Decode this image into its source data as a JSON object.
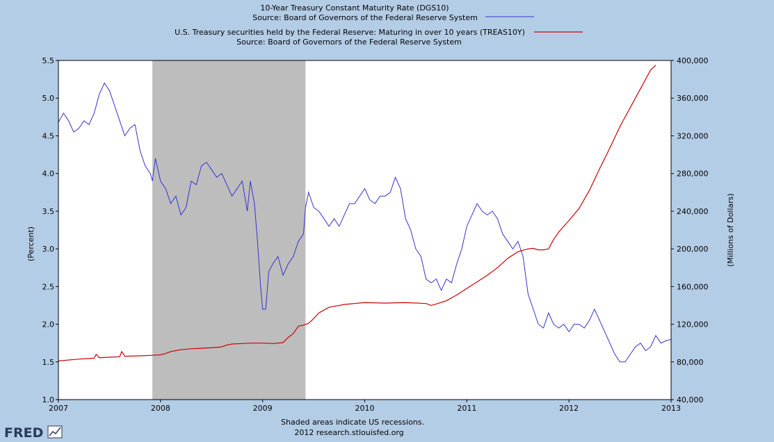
{
  "chart_data": {
    "type": "line",
    "title_lines": [
      "10-Year Treasury Constant Maturity Rate (DGS10)",
      "Source: Board of Governors of the Federal Reserve System",
      "U.S. Treasury securities held by the Federal Reserve: Maturing in over 10 years (TREAS10Y)",
      "Source: Board of Governors of the Federal Reserve System"
    ],
    "ylabel_left": "(Percent)",
    "ylabel_right": "(Millions of Dollars)",
    "xlim": [
      2007,
      2013
    ],
    "ylim_left": [
      1.0,
      5.5
    ],
    "ylim_right": [
      40000,
      400000
    ],
    "x_ticks": [
      "2007",
      "2008",
      "2009",
      "2010",
      "2011",
      "2012",
      "2013"
    ],
    "y_ticks_left": [
      "1.0",
      "1.5",
      "2.0",
      "2.5",
      "3.0",
      "3.5",
      "4.0",
      "4.5",
      "5.0",
      "5.5"
    ],
    "y_ticks_right": [
      "40,000",
      "80,000",
      "120,000",
      "160,000",
      "200,000",
      "240,000",
      "280,000",
      "320,000",
      "360,000",
      "400,000"
    ],
    "recession": {
      "start": 2007.92,
      "end": 2009.42
    },
    "series": [
      {
        "name": "DGS10",
        "color": "#3333cc",
        "axis": "left",
        "x": [
          2007.0,
          2007.05,
          2007.1,
          2007.15,
          2007.2,
          2007.25,
          2007.3,
          2007.35,
          2007.4,
          2007.45,
          2007.5,
          2007.55,
          2007.6,
          2007.65,
          2007.7,
          2007.75,
          2007.8,
          2007.85,
          2007.9,
          2007.92,
          2007.95,
          2008.0,
          2008.05,
          2008.1,
          2008.15,
          2008.2,
          2008.25,
          2008.3,
          2008.35,
          2008.4,
          2008.45,
          2008.5,
          2008.55,
          2008.6,
          2008.65,
          2008.7,
          2008.75,
          2008.8,
          2008.85,
          2008.88,
          2008.92,
          2008.95,
          2008.98,
          2009.0,
          2009.03,
          2009.06,
          2009.1,
          2009.15,
          2009.2,
          2009.25,
          2009.3,
          2009.35,
          2009.4,
          2009.42,
          2009.45,
          2009.5,
          2009.55,
          2009.6,
          2009.65,
          2009.7,
          2009.75,
          2009.8,
          2009.85,
          2009.9,
          2009.95,
          2010.0,
          2010.05,
          2010.1,
          2010.15,
          2010.2,
          2010.25,
          2010.3,
          2010.35,
          2010.4,
          2010.45,
          2010.5,
          2010.55,
          2010.6,
          2010.65,
          2010.7,
          2010.75,
          2010.8,
          2010.85,
          2010.9,
          2010.95,
          2011.0,
          2011.05,
          2011.1,
          2011.15,
          2011.2,
          2011.25,
          2011.3,
          2011.35,
          2011.4,
          2011.45,
          2011.5,
          2011.55,
          2011.6,
          2011.65,
          2011.7,
          2011.75,
          2011.8,
          2011.85,
          2011.9,
          2011.95,
          2012.0,
          2012.05,
          2012.1,
          2012.15,
          2012.2,
          2012.25,
          2012.3,
          2012.35,
          2012.4,
          2012.45,
          2012.5,
          2012.55,
          2012.6,
          2012.65,
          2012.7,
          2012.75,
          2012.8,
          2012.85,
          2012.9,
          2012.95,
          2013.0
        ],
        "values": [
          4.68,
          4.8,
          4.7,
          4.55,
          4.6,
          4.7,
          4.65,
          4.8,
          5.05,
          5.2,
          5.1,
          4.9,
          4.7,
          4.5,
          4.6,
          4.65,
          4.3,
          4.1,
          4.0,
          3.9,
          4.2,
          3.9,
          3.8,
          3.6,
          3.7,
          3.45,
          3.55,
          3.9,
          3.85,
          4.1,
          4.15,
          4.05,
          3.95,
          4.0,
          3.85,
          3.7,
          3.8,
          3.9,
          3.5,
          3.9,
          3.6,
          3.1,
          2.5,
          2.2,
          2.2,
          2.7,
          2.8,
          2.9,
          2.65,
          2.8,
          2.9,
          3.1,
          3.2,
          3.55,
          3.75,
          3.55,
          3.5,
          3.4,
          3.3,
          3.4,
          3.3,
          3.45,
          3.6,
          3.6,
          3.7,
          3.8,
          3.65,
          3.6,
          3.7,
          3.7,
          3.75,
          3.95,
          3.8,
          3.4,
          3.25,
          3.0,
          2.9,
          2.6,
          2.55,
          2.6,
          2.45,
          2.6,
          2.55,
          2.8,
          3.0,
          3.3,
          3.45,
          3.6,
          3.5,
          3.45,
          3.5,
          3.4,
          3.2,
          3.1,
          3.0,
          3.1,
          2.9,
          2.4,
          2.2,
          2.0,
          1.95,
          2.15,
          2.0,
          1.95,
          2.0,
          1.9,
          2.0,
          2.0,
          1.95,
          2.05,
          2.2,
          2.05,
          1.9,
          1.75,
          1.6,
          1.5,
          1.5,
          1.6,
          1.7,
          1.75,
          1.65,
          1.7,
          1.85,
          1.75,
          1.78,
          1.8
        ]
      },
      {
        "name": "TREAS10Y",
        "color": "#cc0000",
        "axis": "right",
        "x": [
          2007.0,
          2007.2,
          2007.35,
          2007.37,
          2007.4,
          2007.5,
          2007.6,
          2007.62,
          2007.65,
          2007.8,
          2007.9,
          2008.0,
          2008.05,
          2008.1,
          2008.2,
          2008.3,
          2008.4,
          2008.5,
          2008.6,
          2008.65,
          2008.7,
          2008.8,
          2008.9,
          2009.0,
          2009.1,
          2009.2,
          2009.25,
          2009.3,
          2009.35,
          2009.4,
          2009.45,
          2009.5,
          2009.55,
          2009.6,
          2009.65,
          2009.7,
          2009.8,
          2009.9,
          2010.0,
          2010.2,
          2010.4,
          2010.6,
          2010.65,
          2010.7,
          2010.8,
          2010.9,
          2011.0,
          2011.1,
          2011.2,
          2011.3,
          2011.4,
          2011.5,
          2011.6,
          2011.65,
          2011.7,
          2011.75,
          2011.8,
          2011.85,
          2011.9,
          2012.0,
          2012.1,
          2012.2,
          2012.3,
          2012.4,
          2012.5,
          2012.6,
          2012.7,
          2012.8,
          2012.85
        ],
        "values": [
          81000,
          83000,
          84000,
          88000,
          84500,
          85000,
          85500,
          91000,
          86000,
          86500,
          87000,
          87500,
          89000,
          91000,
          93000,
          94000,
          94500,
          95000,
          96000,
          98000,
          99000,
          99500,
          100000,
          100000,
          99500,
          100500,
          106000,
          110000,
          118000,
          119000,
          121000,
          126000,
          132000,
          135000,
          138000,
          139000,
          141000,
          142000,
          143000,
          142500,
          143000,
          142000,
          140000,
          141500,
          145000,
          151000,
          158000,
          165000,
          172000,
          180000,
          190000,
          197000,
          200000,
          200500,
          199000,
          199000,
          200000,
          210000,
          218000,
          230000,
          243000,
          262000,
          285000,
          307000,
          330000,
          350000,
          370000,
          390000,
          395000
        ]
      }
    ],
    "footer_line1": "Shaded areas indicate US recessions.",
    "footer_line2": "2012 research.stlouisfed.org",
    "logo": "FRED"
  }
}
